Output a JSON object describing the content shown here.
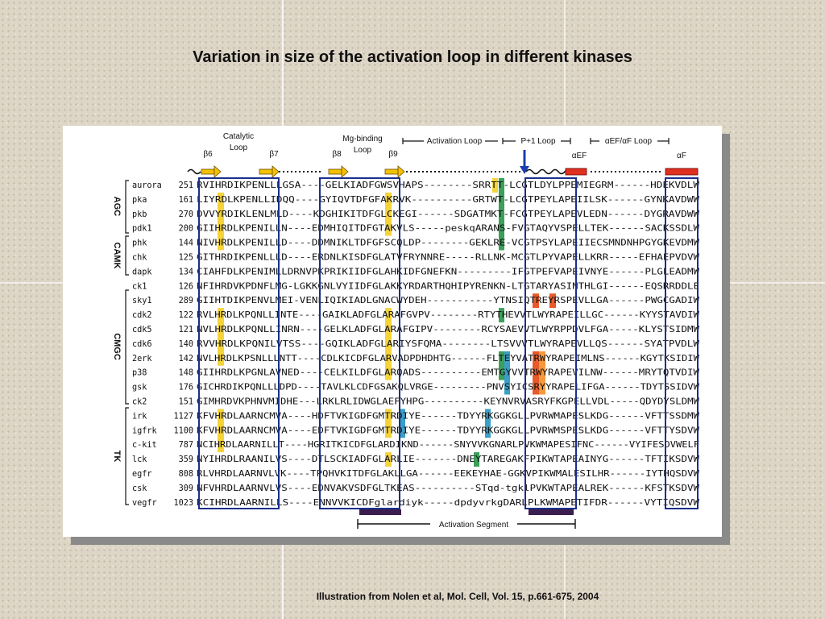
{
  "slide": {
    "title": "Variation in size of the activation loop in different kinases",
    "caption": "Illustration from Nolen et al, Mol. Cell, Vol. 15, p.661-675, 2004"
  },
  "figure": {
    "headers": {
      "catalytic_loop": [
        "Catalytic",
        "Loop"
      ],
      "mg_binding_loop": [
        "Mg-binding",
        "Loop"
      ],
      "activation_loop": "Activation Loop",
      "p1_loop": "P+1 Loop",
      "aef_af_loop": "αEF/αF Loop"
    },
    "strands": [
      "β6",
      "β7",
      "β8",
      "β9",
      "αEF",
      "αF"
    ],
    "activation_segment_label": "Activation Segment",
    "groups": [
      "AGC",
      "CAMK",
      "CMGC",
      "TK"
    ],
    "rows": [
      {
        "name": "aurora",
        "num": "251",
        "seq": "RVIHRDIKPENLLLGSA----GELKIADFGWSVHAPS--------SRRTT-LCGTLDYLPPEMIEGRM------HDEKVDLW"
      },
      {
        "name": "pka",
        "num": "161",
        "seq": "LIYRDLKPENLLIDQQ----GYIQVTDFGFAKRVK----------GRTWT-LCGTPEYLAPEIILSK------GYNKAVDWW"
      },
      {
        "name": "pkb",
        "num": "270",
        "seq": "DVVYRDIKLENLMLD----KDGHIKITDFGLCKEGI------SDGATMKT-FCGTPEYLAPEVLEDN------DYGRAVDWW"
      },
      {
        "name": "pdk1",
        "num": "200",
        "seq": "GIIHRDLKPENILLN----EDMHIQITDFGTAKVLS-----peskqARANS-FVGTAQYVSPELLTEK------SACKSSDLW"
      },
      {
        "name": "phk",
        "num": "144",
        "seq": "NIVHRDLKPENILLD----DDMNIKLTDFGFSCQLDP--------GEKLRE-VCGTPSYLAPEIIECSMNDNHPGYGKEVDMW"
      },
      {
        "name": "chk",
        "num": "125",
        "seq": "GITHRDIKPENLLLD----ERDNLKISDFGLATVFRYNNRE-----RLLNK-MCGTLPYVAPELLKRR-----EFHAEPVDVW"
      },
      {
        "name": "dapk",
        "num": "134",
        "seq": "CIAHFDLKPENIMLLDRNVPKPRIKIIDFGLAHKIDFGNEFKN---------IFGTPEFVAPEIVNYE------PLGLEADMW"
      },
      {
        "name": "ck1",
        "num": "126",
        "seq": "NFIHRDVKPDNFLMG-LGKKGNLVYIIDFGLAKKYRDARTHQHIPYRENKN-LTGTARYASINTHLGI------EQSRRDDLE"
      },
      {
        "name": "sky1",
        "num": "289",
        "seq": "GIIHTDIKPENVLMEI-VENLIQIKIADLGNACWYDEH-----------YTNSIQTREYRSPEVLLGA------PWGCGADIW"
      },
      {
        "name": "cdk2",
        "num": "122",
        "seq": "RVLHRDLKPQNLLINTE----GAIKLADFGLARAFGVPV--------RTYTHEVVTLWYRAPEILLGC------KYYSTAVDIW"
      },
      {
        "name": "cdk5",
        "num": "121",
        "seq": "NVLHRDLKPQNLLINRN----GELKLADFGLARAFGIPV--------RCYSAEVVTLWYRPPDVLFGA-----KLYSTSIDMW"
      },
      {
        "name": "cdk6",
        "num": "140",
        "seq": "RVVHRDLKPQNILVTSS----GQIKLADFGLARIYSFQMA--------LTSVVVTLWYRAPEVLLQS------SYATPVDLW"
      },
      {
        "name": "2erk",
        "num": "142",
        "seq": "NVLHRDLKPSNLLLNTT----CDLKICDFGLARVADPDHDHTG------FLTEYVATRWYRAPEIMLNS------KGYTKSIDIW"
      },
      {
        "name": "p38",
        "num": "148",
        "seq": "GIIHRDLKPGNLAVNED----CELKILDFGLARQADS----------EMTGYVVTRWYRAPEVILNW------MRYTQTVDIW"
      },
      {
        "name": "gsk",
        "num": "176",
        "seq": "GICHRDIKPQNLLLDPD----TAVLKLCDFGSAKQLVRGE---------PNVSYICSRYYRAPELIFGA------TDYTSSIDVW"
      },
      {
        "name": "ck2",
        "num": "151",
        "seq": "GIMHRDVKPHNVMIDHE---LRKLRLIDWGLAEFYHPG----------KEYNVRVASRYFKGPELLVDL-----QDYDYSLDMW"
      },
      {
        "name": "irk",
        "num": "1127",
        "seq": "KFVHRDLAARNCMVA----HDFTVKIGDFGMTRDIYE------TDYYRKGGKGLLPVRWMAPESLKDG------VFTTSSDMW"
      },
      {
        "name": "igfrk",
        "num": "1100",
        "seq": "KFVHRDLAARNCMVA----EDFTVKIGDFGMTRDIYE------TDYYRKGGKGLLPVRWMSPESLKDG------VFTTYSDVW"
      },
      {
        "name": "c-kit",
        "num": "787",
        "seq": "NCIHRDLAARNILLT----HGRITKICDFGLARDIKND------SNYVVKGNARLPVKWMAPESIFNC------VYIFESDVWELF"
      },
      {
        "name": "lck",
        "num": "359",
        "seq": "NYIHRDLRAANILVS----DTLSCKIADFGLARLIE-------DNEYTAREGAKFPIKWTAPEAINYG------TFTIKSDVW"
      },
      {
        "name": "egfr",
        "num": "808",
        "seq": "RLVHRDLAARNVLVK----TPQHVKITDFGLAKLLGA------EEKEYHAE-GGKVPIKWMALESILHR------IYTHQSDVW"
      },
      {
        "name": "csk",
        "num": "309",
        "seq": "NFVHRDLAARNVLVS----EDNVAKVSDFGLTKEAS----------STqd-tgklPVKWTAPEALREK------KFSTKSDVW"
      },
      {
        "name": "vegfr",
        "num": "1023",
        "seq": "KCIHRDLAARNILLS----ENNVVKICDFglardiyk-----dpdyvrkgDARLPLKWMAPETIFDR------VYTIQSDVW"
      }
    ]
  }
}
